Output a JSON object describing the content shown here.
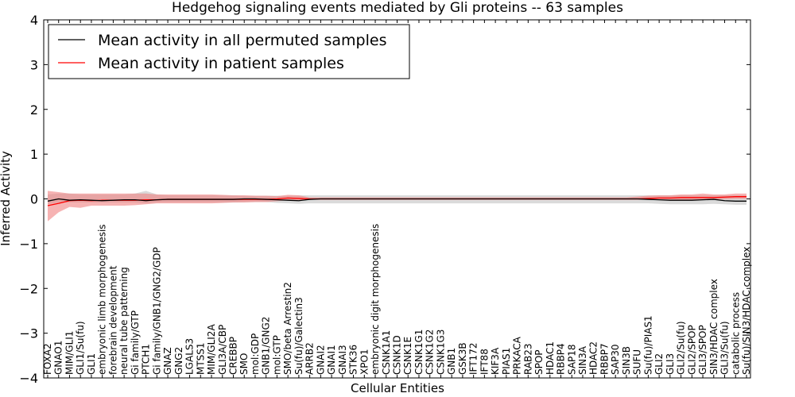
{
  "chart_data": {
    "type": "line",
    "title": "Hedgehog signaling events mediated by Gli proteins -- 63 samples",
    "xlabel": "Cellular Entities",
    "ylabel": "Inferred Activity",
    "ylim": [
      -4,
      4
    ],
    "yticks": [
      -4,
      -3,
      -2,
      -1,
      0,
      1,
      2,
      3,
      4
    ],
    "ytick_labels": [
      "−4",
      "−3",
      "−2",
      "−1",
      "0",
      "1",
      "2",
      "3",
      "4"
    ],
    "legend_position": "top-left",
    "categories": [
      "FOXA2",
      "GNAO1",
      "MIM/GLI1",
      "GLI1/Su(fu)",
      "GLI1",
      "embryonic limb morphogenesis",
      "forebrain development",
      "neural tube patterning",
      "Gi family/GTP",
      "PTCH1",
      "Gi family/GNB1/GNG2/GDP",
      "GNAZ",
      "GNG2",
      "LGALS3",
      "MTSS1",
      "MIM/GLI2A",
      "GLI3A/CBP",
      "CREBBP",
      "SMO",
      "mol:GDP",
      "GNB1/GNG2",
      "mol:GTP",
      "SMO/beta Arrestin2",
      "Su(fu)/Galectin3",
      "ARRB2",
      "GNAI2",
      "GNAI1",
      "GNAI3",
      "STK36",
      "XPO1",
      "embryonic digit morphogenesis",
      "CSNK1A1",
      "CSNK1D",
      "CSNK1E",
      "CSNK1G1",
      "CSNK1G2",
      "CSNK1G3",
      "GNB1",
      "GSK3B",
      "IFT172",
      "IFT88",
      "KIF3A",
      "PIAS1",
      "PRKACA",
      "RAB23",
      "SPOP",
      "HDAC1",
      "RBBP4",
      "SAP18",
      "SIN3A",
      "HDAC2",
      "RBBP7",
      "SAP30",
      "SIN3B",
      "SUFU",
      "Su(fu)/PIAS1",
      "GLI2",
      "GLI3",
      "GLI2/Su(fu)",
      "GLI2/SPOP",
      "GLI3/SPOP",
      "SIN3/HDAC complex",
      "GLI3/Su(fu)",
      "catabolic process",
      "Su(fu)/SIN3/HDAC complex"
    ],
    "series": [
      {
        "name": "Mean activity in all permuted samples",
        "color": "#000000",
        "band_color": "#bbbbbb",
        "values": [
          -0.05,
          0.0,
          -0.03,
          -0.02,
          -0.03,
          -0.04,
          -0.03,
          -0.02,
          -0.02,
          -0.04,
          -0.02,
          -0.01,
          -0.01,
          -0.01,
          -0.01,
          -0.01,
          -0.01,
          -0.01,
          0.0,
          0.0,
          -0.01,
          -0.02,
          -0.03,
          -0.04,
          -0.01,
          0.0,
          0.0,
          0.0,
          0.0,
          0.0,
          0.0,
          0.0,
          0.0,
          0.0,
          0.0,
          0.0,
          0.0,
          0.0,
          0.0,
          0.0,
          0.0,
          0.0,
          0.0,
          0.0,
          0.0,
          0.0,
          0.0,
          0.0,
          0.0,
          0.0,
          0.0,
          0.0,
          0.0,
          0.0,
          0.0,
          -0.01,
          -0.02,
          -0.03,
          -0.03,
          -0.03,
          -0.02,
          -0.01,
          -0.04,
          -0.05,
          -0.05
        ],
        "lower": [
          -0.12,
          -0.08,
          -0.08,
          -0.08,
          -0.08,
          -0.08,
          -0.08,
          -0.08,
          -0.08,
          -0.1,
          -0.08,
          -0.08,
          -0.08,
          -0.08,
          -0.08,
          -0.08,
          -0.08,
          -0.08,
          -0.07,
          -0.07,
          -0.07,
          -0.09,
          -0.1,
          -0.11,
          -0.1,
          -0.1,
          -0.1,
          -0.1,
          -0.1,
          -0.1,
          -0.1,
          -0.1,
          -0.1,
          -0.1,
          -0.1,
          -0.1,
          -0.1,
          -0.1,
          -0.1,
          -0.1,
          -0.1,
          -0.1,
          -0.1,
          -0.1,
          -0.1,
          -0.1,
          -0.1,
          -0.1,
          -0.1,
          -0.1,
          -0.1,
          -0.1,
          -0.1,
          -0.1,
          -0.1,
          -0.1,
          -0.11,
          -0.12,
          -0.12,
          -0.12,
          -0.12,
          -0.11,
          -0.12,
          -0.13,
          -0.13
        ],
        "upper": [
          0.1,
          0.12,
          0.12,
          0.1,
          0.1,
          0.1,
          0.1,
          0.1,
          0.12,
          0.18,
          0.1,
          0.08,
          0.08,
          0.08,
          0.08,
          0.08,
          0.08,
          0.08,
          0.07,
          0.07,
          0.07,
          0.07,
          0.07,
          0.08,
          0.08,
          0.08,
          0.08,
          0.08,
          0.08,
          0.08,
          0.08,
          0.08,
          0.08,
          0.08,
          0.08,
          0.08,
          0.08,
          0.08,
          0.08,
          0.08,
          0.08,
          0.08,
          0.08,
          0.08,
          0.08,
          0.08,
          0.08,
          0.08,
          0.08,
          0.08,
          0.08,
          0.08,
          0.08,
          0.08,
          0.08,
          0.08,
          0.08,
          0.08,
          0.08,
          0.08,
          0.08,
          0.08,
          0.08,
          0.08,
          0.08
        ]
      },
      {
        "name": "Mean activity in patient samples",
        "color": "#ff0000",
        "band_color": "#f08080",
        "values": [
          -0.15,
          -0.1,
          -0.04,
          -0.03,
          -0.04,
          -0.03,
          -0.03,
          -0.03,
          -0.03,
          -0.02,
          -0.02,
          -0.01,
          -0.01,
          -0.01,
          -0.01,
          -0.01,
          -0.01,
          -0.01,
          -0.01,
          -0.01,
          -0.01,
          0.0,
          0.02,
          0.01,
          0.0,
          0.0,
          0.0,
          0.0,
          0.0,
          0.0,
          0.0,
          0.0,
          0.0,
          0.0,
          0.0,
          0.0,
          0.0,
          0.0,
          0.0,
          0.0,
          0.0,
          0.0,
          0.0,
          0.0,
          0.0,
          0.0,
          0.0,
          0.0,
          0.0,
          0.0,
          0.0,
          0.0,
          0.0,
          0.0,
          0.0,
          0.01,
          0.02,
          0.02,
          0.03,
          0.03,
          0.03,
          0.03,
          0.04,
          0.05,
          0.05
        ],
        "lower": [
          -0.5,
          -0.3,
          -0.18,
          -0.2,
          -0.15,
          -0.15,
          -0.15,
          -0.15,
          -0.14,
          -0.12,
          -0.1,
          -0.1,
          -0.1,
          -0.1,
          -0.1,
          -0.1,
          -0.09,
          -0.08,
          -0.08,
          -0.07,
          -0.07,
          -0.05,
          -0.03,
          -0.03,
          -0.02,
          -0.02,
          -0.02,
          -0.02,
          -0.02,
          -0.02,
          -0.02,
          -0.02,
          -0.02,
          -0.02,
          -0.02,
          -0.02,
          -0.02,
          -0.02,
          -0.02,
          -0.02,
          -0.02,
          -0.02,
          -0.02,
          -0.02,
          -0.02,
          -0.02,
          -0.02,
          -0.02,
          -0.02,
          -0.02,
          -0.02,
          -0.02,
          -0.02,
          -0.02,
          -0.02,
          -0.02,
          -0.02,
          -0.02,
          -0.02,
          -0.02,
          -0.02,
          -0.01,
          -0.01,
          0.0,
          0.0
        ],
        "upper": [
          0.18,
          0.15,
          0.12,
          0.12,
          0.12,
          0.12,
          0.12,
          0.12,
          0.12,
          0.12,
          0.1,
          0.1,
          0.1,
          0.1,
          0.1,
          0.1,
          0.09,
          0.08,
          0.08,
          0.07,
          0.07,
          0.06,
          0.09,
          0.08,
          0.03,
          0.03,
          0.03,
          0.03,
          0.03,
          0.03,
          0.03,
          0.03,
          0.03,
          0.03,
          0.03,
          0.03,
          0.03,
          0.03,
          0.03,
          0.03,
          0.03,
          0.03,
          0.03,
          0.03,
          0.03,
          0.03,
          0.03,
          0.03,
          0.03,
          0.03,
          0.03,
          0.03,
          0.03,
          0.03,
          0.05,
          0.07,
          0.08,
          0.08,
          0.1,
          0.1,
          0.12,
          0.1,
          0.1,
          0.12,
          0.12
        ]
      }
    ]
  }
}
